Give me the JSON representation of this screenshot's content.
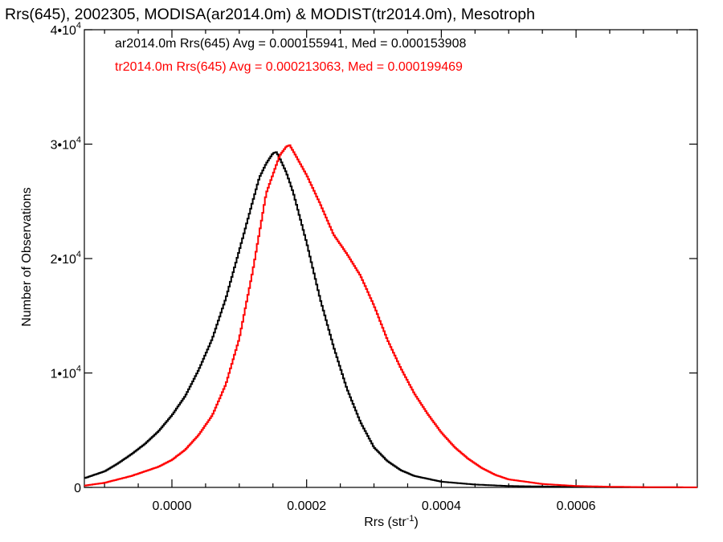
{
  "chart_data": {
    "type": "line",
    "title": "Rrs(645), 2002305, MODISA(ar2014.0m) & MODIST(tr2014.0m), Mesotroph",
    "xlabel": "Rrs (str",
    "xlabel_sup": "-1",
    "xlabel_end": ")",
    "ylabel": "Number of Observations",
    "xlim": [
      -0.00013,
      0.00078
    ],
    "ylim": [
      0,
      40000
    ],
    "xticks": [
      {
        "value": 0.0,
        "label": "0.0000"
      },
      {
        "value": 0.0002,
        "label": "0.0002"
      },
      {
        "value": 0.0004,
        "label": "0.0004"
      },
      {
        "value": 0.0006,
        "label": "0.0006"
      }
    ],
    "yticks": [
      {
        "value": 0,
        "base": "0",
        "sup": ""
      },
      {
        "value": 10000,
        "base": "1•10",
        "sup": "4"
      },
      {
        "value": 20000,
        "base": "2•10",
        "sup": "4"
      },
      {
        "value": 30000,
        "base": "3•10",
        "sup": "4"
      },
      {
        "value": 40000,
        "base": "4•10",
        "sup": "4"
      }
    ],
    "series": [
      {
        "label": "ar2014.0m Rrs(645) Avg = 0.000155941, Med = 0.000153908",
        "color": "#000000",
        "points": [
          [
            -0.00013,
            800
          ],
          [
            -0.0001,
            1400
          ],
          [
            -8e-05,
            2100
          ],
          [
            -6e-05,
            2900
          ],
          [
            -4e-05,
            3800
          ],
          [
            -2e-05,
            4900
          ],
          [
            0.0,
            6300
          ],
          [
            2e-05,
            8000
          ],
          [
            4e-05,
            10300
          ],
          [
            6e-05,
            13000
          ],
          [
            8e-05,
            16500
          ],
          [
            0.0001,
            20700
          ],
          [
            0.00012,
            25000
          ],
          [
            0.00013,
            27100
          ],
          [
            0.00014,
            28300
          ],
          [
            0.00015,
            29200
          ],
          [
            0.000155,
            29300
          ],
          [
            0.00016,
            28800
          ],
          [
            0.00017,
            27500
          ],
          [
            0.00018,
            25800
          ],
          [
            0.0002,
            21400
          ],
          [
            0.00022,
            16500
          ],
          [
            0.00024,
            12300
          ],
          [
            0.00026,
            8600
          ],
          [
            0.00028,
            5700
          ],
          [
            0.0003,
            3500
          ],
          [
            0.00032,
            2300
          ],
          [
            0.00034,
            1500
          ],
          [
            0.00036,
            1000
          ],
          [
            0.0004,
            500
          ],
          [
            0.00045,
            250
          ],
          [
            0.0005,
            120
          ],
          [
            0.0006,
            40
          ],
          [
            0.0007,
            10
          ],
          [
            0.00078,
            0
          ]
        ]
      },
      {
        "label": "tr2014.0m Rrs(645) Avg = 0.000213063, Med = 0.000199469",
        "color": "#ff0000",
        "points": [
          [
            -0.00013,
            150
          ],
          [
            -0.0001,
            400
          ],
          [
            -8e-05,
            700
          ],
          [
            -6e-05,
            1000
          ],
          [
            -4e-05,
            1400
          ],
          [
            -2e-05,
            1800
          ],
          [
            0.0,
            2400
          ],
          [
            2e-05,
            3300
          ],
          [
            4e-05,
            4600
          ],
          [
            6e-05,
            6300
          ],
          [
            8e-05,
            9000
          ],
          [
            0.0001,
            13000
          ],
          [
            0.00012,
            18900
          ],
          [
            0.00014,
            25700
          ],
          [
            0.00016,
            29000
          ],
          [
            0.00017,
            29800
          ],
          [
            0.000175,
            29900
          ],
          [
            0.00018,
            29400
          ],
          [
            0.0002,
            27300
          ],
          [
            0.00022,
            24800
          ],
          [
            0.00024,
            22100
          ],
          [
            0.00026,
            20400
          ],
          [
            0.00028,
            18500
          ],
          [
            0.0003,
            15900
          ],
          [
            0.00032,
            12900
          ],
          [
            0.00034,
            10400
          ],
          [
            0.00036,
            8200
          ],
          [
            0.00038,
            6400
          ],
          [
            0.0004,
            4800
          ],
          [
            0.00042,
            3500
          ],
          [
            0.00044,
            2500
          ],
          [
            0.00046,
            1700
          ],
          [
            0.00048,
            1100
          ],
          [
            0.0005,
            700
          ],
          [
            0.00055,
            300
          ],
          [
            0.0006,
            120
          ],
          [
            0.00065,
            60
          ],
          [
            0.0007,
            25
          ],
          [
            0.00078,
            5
          ]
        ]
      }
    ]
  }
}
